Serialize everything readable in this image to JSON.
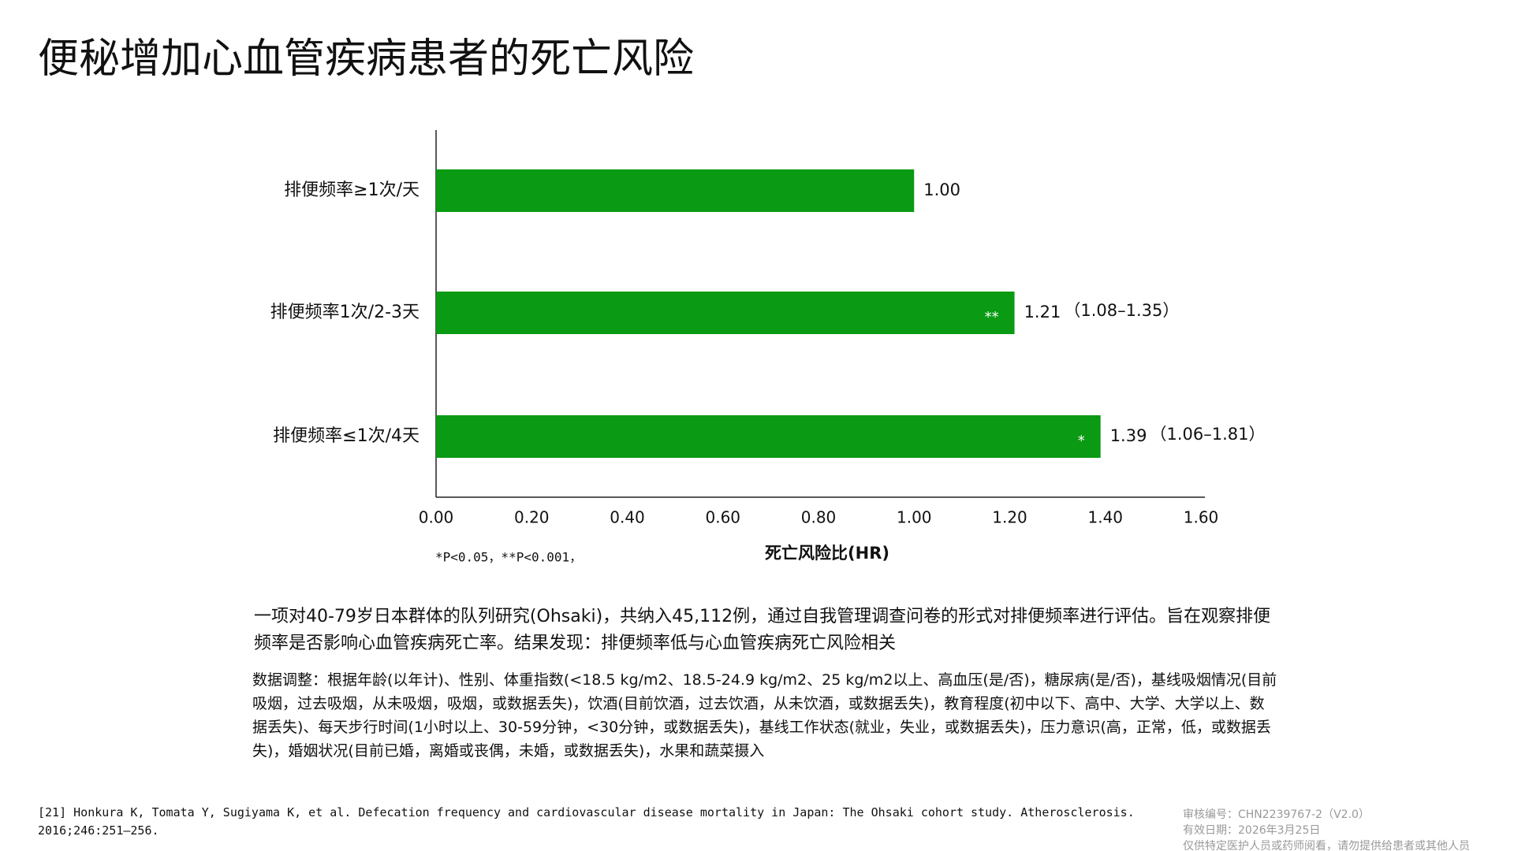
{
  "chart_data": {
    "type": "barh",
    "title": "便秘增加心血管疾病患者的死亡风险",
    "categories": [
      "排便频率≥1次/天",
      "排便频率1次/2-3天",
      "排便频率≤1次/4天"
    ],
    "values": [
      1.0,
      1.21,
      1.39
    ],
    "value_labels": [
      "1.00",
      "1.21",
      "1.39"
    ],
    "ci_labels": [
      null,
      "（1.08–1.35）",
      "（1.06–1.81）"
    ],
    "significance": [
      null,
      "**",
      "*"
    ],
    "color": "#0a9a13",
    "xlim": [
      0,
      1.6
    ],
    "xticks": [
      {
        "value": 0,
        "label": "0.00"
      },
      {
        "value": 0.2,
        "label": "0.20"
      },
      {
        "value": 0.4,
        "label": "0.40"
      },
      {
        "value": 0.6,
        "label": "0.60"
      },
      {
        "value": 0.8,
        "label": "0.80"
      },
      {
        "value": 1,
        "label": "1.00"
      },
      {
        "value": 1.2,
        "label": "1.20"
      },
      {
        "value": 1.4,
        "label": "1.40"
      },
      {
        "value": 1.6,
        "label": "1.60"
      }
    ],
    "x_label": "死亡风险比(HR)",
    "note": "*P<0.05，**P<0.001，"
  },
  "text": {
    "summary": "一项对40-79岁日本群体的队列研究(Ohsaki)，共纳入45,112例，通过自我管理调查问卷的形式对排便频率进行评估。旨在观察排便频率是否影响心血管疾病死亡率。结果发现：排便频率低与心血管疾病死亡风险相关",
    "adjustment": "数据调整：根据年龄(以年计)、性别、体重指数(<18.5 kg/m2、18.5-24.9 kg/m2、25 kg/m2以上、高血压(是/否)，糖尿病(是/否)，基线吸烟情况(目前吸烟，过去吸烟，从未吸烟，吸烟，或数据丢失)，饮酒(目前饮酒，过去饮酒，从未饮酒，或数据丢失)，教育程度(初中以下、高中、大学、大学以上、数据丢失)、每天步行时间(1小时以上、30-59分钟，<30分钟，或数据丢失)，基线工作状态(就业，失业，或数据丢失)，压力意识(高，正常，低，或数据丢失)，婚姻状况(目前已婚，离婚或丧偶，未婚，或数据丢失)，水果和蔬菜摄入",
    "reference": "[21] Honkura K, Tomata Y, Sugiyama K, et al. Defecation frequency and cardiovascular disease mortality in Japan: The Ohsaki cohort study. Atherosclerosis. 2016;246:251–256.",
    "footer": [
      "审核编号：CHN2239767-2（V2.0）",
      "有效日期：2026年3月25日",
      "仅供特定医护人员或药师阅看，请勿提供给患者或其他人员"
    ]
  }
}
